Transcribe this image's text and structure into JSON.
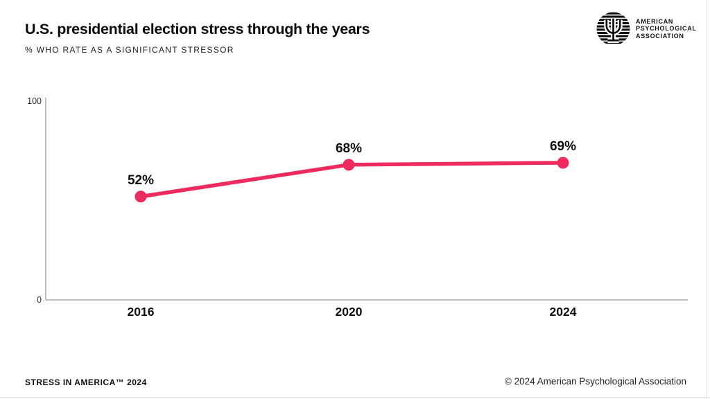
{
  "header": {
    "title": "U.S. presidential election stress through the years",
    "subtitle": "% WHO RATE AS A SIGNIFICANT STRESSOR"
  },
  "logo": {
    "lines": [
      "AMERICAN",
      "PSYCHOLOGICAL",
      "ASSOCIATION"
    ]
  },
  "footer": {
    "left": "STRESS IN AMERICA™ 2024",
    "right": "© 2024 American Psychological Association"
  },
  "colors": {
    "accent": "#ED2B5E",
    "axis": "#ABABAB",
    "text": "#0D0D0D"
  },
  "chart_data": {
    "type": "line",
    "title": "U.S. presidential election stress through the years",
    "subtitle": "% WHO RATE AS A SIGNIFICANT STRESSOR",
    "categories": [
      "2016",
      "2020",
      "2024"
    ],
    "values": [
      52,
      68,
      69
    ],
    "point_labels": [
      "52%",
      "68%",
      "69%"
    ],
    "ylim": [
      0,
      100
    ],
    "ytick_labels": [
      "0",
      "100"
    ],
    "grid": false,
    "legend": false,
    "series_color": "#ED2B5E"
  }
}
